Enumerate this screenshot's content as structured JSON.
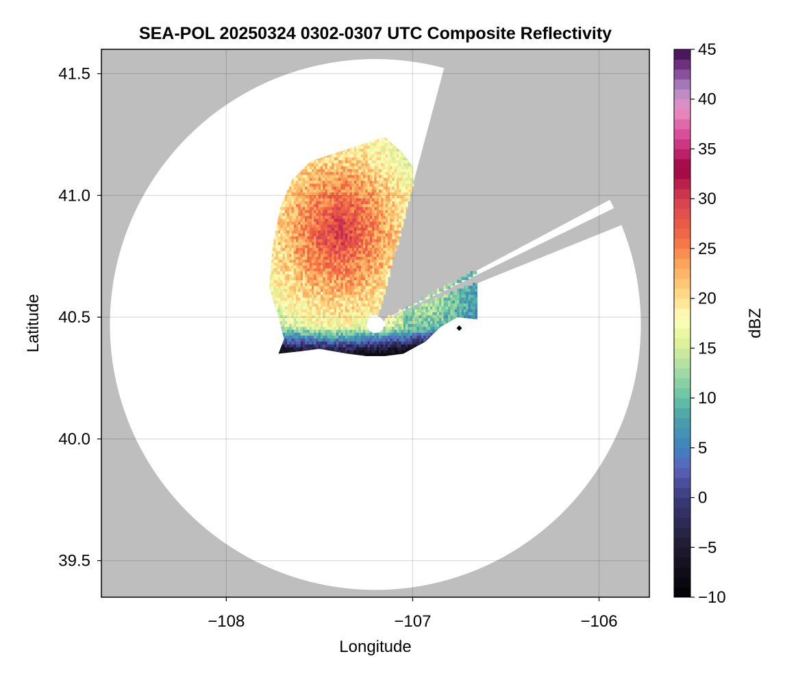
{
  "chart_data": {
    "type": "heatmap",
    "title": "SEA-POL 20250324 0302-0307 UTC Composite Reflectivity",
    "xlabel": "Longitude",
    "ylabel": "Latitude",
    "xlim": [
      -108.67,
      -105.73
    ],
    "ylim": [
      39.35,
      41.6
    ],
    "x_ticks": [
      -108,
      -107,
      -106
    ],
    "x_tick_labels": [
      "−108",
      "−107",
      "−106"
    ],
    "y_ticks": [
      39.5,
      40.0,
      40.5,
      41.0,
      41.5
    ],
    "y_tick_labels": [
      "39.5",
      "40.0",
      "40.5",
      "41.0",
      "41.5"
    ],
    "grid": true,
    "background_color": "#bebebe",
    "coverage_color": "#ffffff",
    "radar": {
      "center_lon": -107.2,
      "center_lat": 40.47,
      "max_range_lat_deg": 1.09,
      "inner_gap_lat_deg": 0.035,
      "blocked_sectors": [
        {
          "from_deg": 15,
          "to_deg": 62
        },
        {
          "from_deg": 64,
          "to_deg": 68
        }
      ]
    },
    "echo": {
      "extent_lon": [
        -107.77,
        -106.66
      ],
      "extent_lat": [
        40.34,
        41.24
      ],
      "max_dbz": 30,
      "core_lon": -107.4,
      "core_lat": 40.85
    },
    "markers": [
      {
        "lon": -106.75,
        "lat": 40.455,
        "symbol": "diamond",
        "color": "#000000"
      }
    ],
    "colorbar": {
      "label": "dBZ",
      "colormap": "spectral_reversed",
      "range": [
        -10,
        45
      ],
      "ticks": [
        -10,
        -5,
        0,
        5,
        10,
        15,
        20,
        25,
        30,
        35,
        40,
        45
      ],
      "tick_labels": [
        "−10",
        "−5",
        "0",
        "5",
        "10",
        "15",
        "20",
        "25",
        "30",
        "35",
        "40",
        "45"
      ],
      "levels": 55,
      "stops": [
        {
          "v": -10,
          "c": "#000004"
        },
        {
          "v": -5,
          "c": "#1f1a2e"
        },
        {
          "v": 0,
          "c": "#3b3a7c"
        },
        {
          "v": 3,
          "c": "#5b64ba"
        },
        {
          "v": 5,
          "c": "#3f82bf"
        },
        {
          "v": 8,
          "c": "#4aa1a8"
        },
        {
          "v": 10,
          "c": "#66c2a5"
        },
        {
          "v": 13,
          "c": "#abdda4"
        },
        {
          "v": 16,
          "c": "#e6f598"
        },
        {
          "v": 18,
          "c": "#fffebf"
        },
        {
          "v": 20,
          "c": "#fee08b"
        },
        {
          "v": 23,
          "c": "#fdae61"
        },
        {
          "v": 26,
          "c": "#f46d43"
        },
        {
          "v": 30,
          "c": "#d53e4f"
        },
        {
          "v": 33,
          "c": "#9e0142"
        },
        {
          "v": 36,
          "c": "#d6408f"
        },
        {
          "v": 39,
          "c": "#e991c4"
        },
        {
          "v": 41,
          "c": "#b38ac6"
        },
        {
          "v": 43,
          "c": "#7b3c8c"
        },
        {
          "v": 45,
          "c": "#3d0a4d"
        }
      ]
    }
  }
}
